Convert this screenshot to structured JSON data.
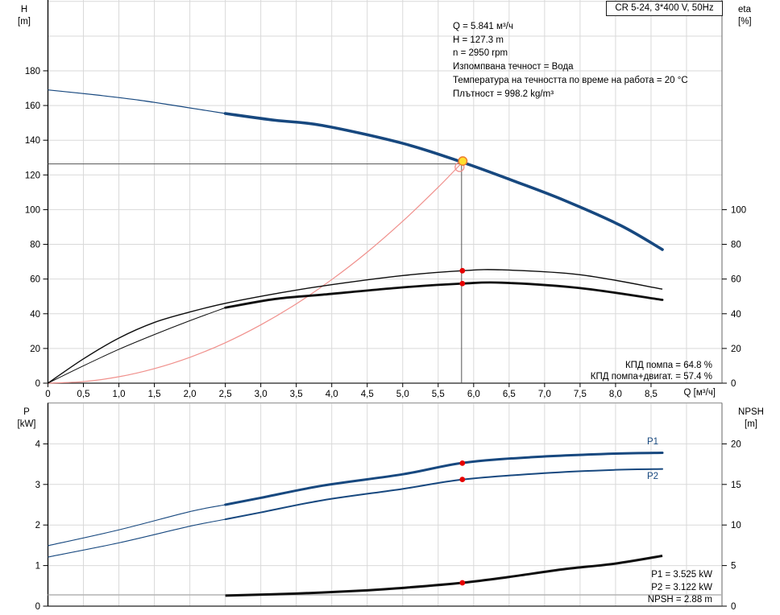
{
  "title_box": {
    "label": "CR 5-24, 3*400 V, 50Hz"
  },
  "operating_point": {
    "lines": [
      "Q = 5.841 м³/ч",
      "H = 127.3 m",
      "n = 2950 rpm",
      "Изпомпвана течност = Вода",
      "Температура на течността по време на работа = 20 °C",
      "Плътност = 998.2 kg/m³"
    ]
  },
  "efficiency_text": {
    "pump": "КПД помпа = 64.8 %",
    "pump_motor": "КПД помпа+двигат. = 57.4 %"
  },
  "result_text": {
    "p1": "P1 = 3.525 kW",
    "p2": "P2 = 3.122 kW",
    "npsh": "NPSH = 2.88 m"
  },
  "curve_labels": {
    "p1": "P1",
    "p2": "P2"
  },
  "axis_titles": {
    "h_line1": "H",
    "h_line2": "[m]",
    "eta_line1": "eta",
    "eta_line2": "[%]",
    "q_unit": "Q [м³/ч]",
    "p_line1": "P",
    "p_line2": "[kW]",
    "npsh_line1": "NPSH",
    "npsh_line2": "[m]"
  },
  "colors": {
    "curve_blue": "#17487f",
    "curve_black": "#0d0d0d",
    "system_red": "#f0908c",
    "marker_red": "#e60000",
    "duty_fill": "#ffdf2e",
    "duty_stroke": "#ed7d31",
    "grid": "#d9d9d9",
    "axis_dark": "#222222",
    "axis_light": "#666666",
    "axis_top": "#9a9a9a",
    "npsh_flat_gray": "#b4b4b4"
  },
  "chart_data": [
    {
      "type": "line",
      "name": "head-efficiency-chart",
      "x_axis": {
        "title": "Q [м³/ч]",
        "min": 0,
        "max": 9.5,
        "grid_step": 0.5,
        "tick_step": 0.5,
        "tick_labels": [
          "0",
          "0,5",
          "1,0",
          "1,5",
          "2,0",
          "2,5",
          "3,0",
          "3,5",
          "4,0",
          "4,5",
          "5,0",
          "5,5",
          "6,0",
          "6,5",
          "7,0",
          "7,5",
          "8,0",
          "8,5"
        ]
      },
      "y_left": {
        "title": "H [m]",
        "min": 0,
        "max": 220.8,
        "grid_step": 20,
        "tick_step": 20,
        "tick_labels": [
          "0",
          "20",
          "40",
          "60",
          "80",
          "100",
          "120",
          "140",
          "160",
          "180"
        ]
      },
      "y_right": {
        "title": "eta [%]",
        "min": 0,
        "max": 220.8,
        "tick_step": 20,
        "tick_labels": [
          "0",
          "20",
          "40",
          "60",
          "80",
          "100"
        ]
      },
      "series": [
        {
          "name": "system-curve",
          "axis": "left",
          "color": "#f0908c",
          "width": 1.2,
          "points": [
            [
              0,
              0
            ],
            [
              0.5,
              0.9
            ],
            [
              1,
              3.7
            ],
            [
              1.5,
              8.4
            ],
            [
              2,
              14.9
            ],
            [
              2.5,
              23.3
            ],
            [
              3,
              33.6
            ],
            [
              3.5,
              45.7
            ],
            [
              4,
              59.7
            ],
            [
              4.5,
              75.5
            ],
            [
              5,
              93.3
            ],
            [
              5.5,
              112.9
            ],
            [
              5.841,
              127.3
            ]
          ]
        },
        {
          "name": "head-curve",
          "axis": "left",
          "color": "#17487f",
          "width": 3.6,
          "thin_width": 1.2,
          "thin_until": 2.5,
          "points": [
            [
              0,
              169
            ],
            [
              0.7,
              166
            ],
            [
              1.3,
              163
            ],
            [
              1.94,
              159
            ],
            [
              2.5,
              155.4
            ],
            [
              3.2,
              151.5
            ],
            [
              3.87,
              148.5
            ],
            [
              5,
              138.2
            ],
            [
              5.841,
              127.3
            ],
            [
              6.6,
              116
            ],
            [
              7.28,
              105.3
            ],
            [
              8.07,
              90.9
            ],
            [
              8.66,
              77
            ]
          ]
        },
        {
          "name": "pump-efficiency-curve",
          "axis": "right",
          "color": "#0d0d0d",
          "width": 1.4,
          "points": [
            [
              0,
              0
            ],
            [
              0.5,
              14
            ],
            [
              1,
              26
            ],
            [
              1.5,
              35
            ],
            [
              2,
              41
            ],
            [
              2.5,
              46
            ],
            [
              3.2,
              51.5
            ],
            [
              3.87,
              56
            ],
            [
              5,
              62
            ],
            [
              5.841,
              64.8
            ],
            [
              6.4,
              65.3
            ],
            [
              7.5,
              62.5
            ],
            [
              8.66,
              54.2
            ]
          ]
        },
        {
          "name": "pump-motor-efficiency-curve",
          "axis": "right",
          "color": "#0d0d0d",
          "width": 2.8,
          "thin_width": 1,
          "thin_until": 2.5,
          "points": [
            [
              0,
              0
            ],
            [
              0.5,
              10
            ],
            [
              1,
              19.5
            ],
            [
              1.5,
              28
            ],
            [
              2,
              36
            ],
            [
              2.5,
              43.5
            ],
            [
              3.2,
              48.5
            ],
            [
              3.87,
              51
            ],
            [
              5,
              55.2
            ],
            [
              5.841,
              57.4
            ],
            [
              6.4,
              57.9
            ],
            [
              7.5,
              54.8
            ],
            [
              8.66,
              48
            ]
          ]
        }
      ],
      "duty_point": {
        "q": 5.841,
        "h": 127.3,
        "eta_pump": 64.8,
        "eta_pump_motor": 57.4
      },
      "crosshair": true
    },
    {
      "type": "line",
      "name": "power-npsh-chart",
      "x_axis": {
        "title": "",
        "min": 0,
        "max": 9.5,
        "grid_step": 0.5,
        "tick_step": 0.5,
        "tick_labels": []
      },
      "y_left": {
        "title": "P [kW]",
        "min": 0,
        "max": 5.01,
        "grid_step": 1,
        "tick_step": 1,
        "tick_labels": [
          "0",
          "1",
          "2",
          "3",
          "4"
        ]
      },
      "y_right": {
        "title": "NPSH [m]",
        "min": 0,
        "max": 25.05,
        "tick_step": 5,
        "tick_labels": [
          "0",
          "5",
          "10",
          "15",
          "20"
        ]
      },
      "series": [
        {
          "name": "npsh-flat-line",
          "axis": "right",
          "color": "#b4b4b4",
          "width": 1.4,
          "points": [
            [
              0,
              1.39
            ],
            [
              9.5,
              1.39
            ]
          ]
        },
        {
          "name": "npsh-curve",
          "axis": "right",
          "color": "#0d0d0d",
          "width": 3,
          "points": [
            [
              2.5,
              1.3
            ],
            [
              3.5,
              1.55
            ],
            [
              4.5,
              1.95
            ],
            [
              5,
              2.25
            ],
            [
              5.841,
              2.88
            ],
            [
              6.5,
              3.6
            ],
            [
              7.27,
              4.55
            ],
            [
              8,
              5.25
            ],
            [
              8.66,
              6.2
            ]
          ]
        },
        {
          "name": "p2-curve",
          "axis": "left",
          "color": "#17487f",
          "width": 2,
          "thin_width": 1.1,
          "thin_until": 2.5,
          "points": [
            [
              0,
              1.21
            ],
            [
              1,
              1.56
            ],
            [
              2,
              1.97
            ],
            [
              2.5,
              2.14
            ],
            [
              3,
              2.31
            ],
            [
              3.87,
              2.61
            ],
            [
              5,
              2.89
            ],
            [
              5.841,
              3.12
            ],
            [
              7,
              3.28
            ],
            [
              8,
              3.36
            ],
            [
              8.66,
              3.38
            ]
          ]
        },
        {
          "name": "p1-curve",
          "axis": "left",
          "color": "#17487f",
          "width": 3,
          "thin_width": 1.1,
          "thin_until": 2.5,
          "points": [
            [
              0,
              1.49
            ],
            [
              1,
              1.88
            ],
            [
              2,
              2.33
            ],
            [
              2.5,
              2.5
            ],
            [
              3,
              2.67
            ],
            [
              3.87,
              2.97
            ],
            [
              5,
              3.25
            ],
            [
              5.841,
              3.53
            ],
            [
              6.8,
              3.67
            ],
            [
              8,
              3.76
            ],
            [
              8.66,
              3.78
            ]
          ]
        }
      ],
      "duty_point": {
        "q": 5.841,
        "p1": 3.525,
        "p2": 3.122,
        "npsh": 2.88
      },
      "crosshair": false
    }
  ]
}
